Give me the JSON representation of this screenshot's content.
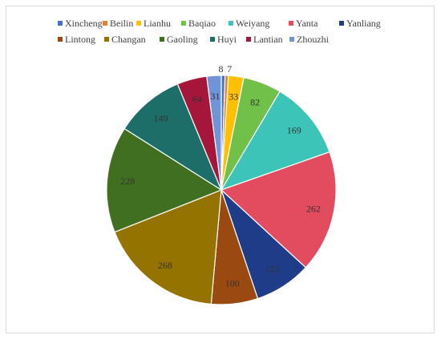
{
  "chart_data": {
    "type": "pie",
    "title": "",
    "legend_position": "top",
    "categories": [
      "Xincheng",
      "Beilin",
      "Lianhu",
      "Baqiao",
      "Weiyang",
      "Yanta",
      "Yanliang",
      "Lintong",
      "Changan",
      "Gaoling",
      "Huyi",
      "Lantian",
      "Zhouzhi"
    ],
    "values": [
      8,
      7,
      33,
      82,
      169,
      262,
      122,
      100,
      268,
      228,
      149,
      64,
      31
    ],
    "colors": [
      "#4472c4",
      "#ed7d31",
      "#ffc000",
      "#70c04a",
      "#3cc4b8",
      "#e24c5e",
      "#1f3c88",
      "#9a4a10",
      "#957300",
      "#40701f",
      "#1d6e69",
      "#a5163a",
      "#6f94d8"
    ]
  }
}
